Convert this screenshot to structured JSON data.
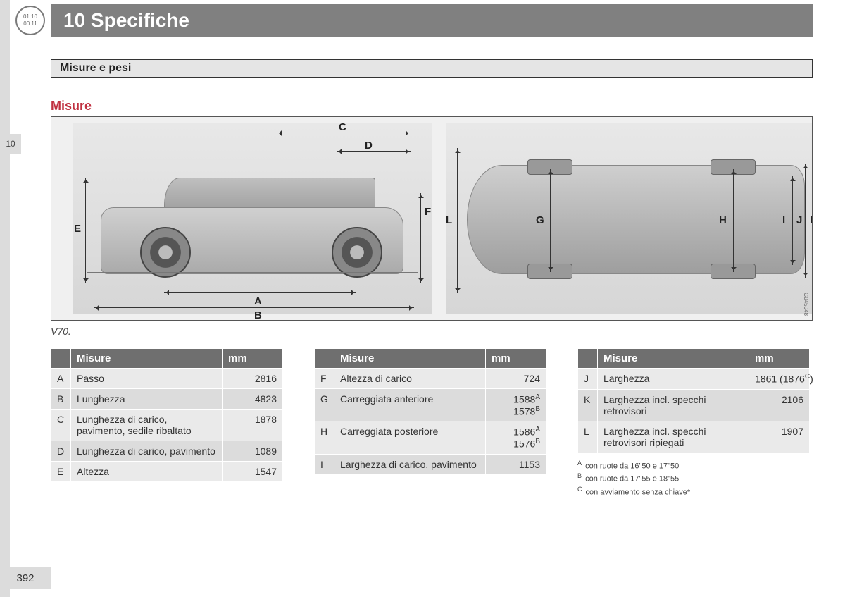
{
  "chapter": {
    "icon_text": "01 10\n00 11",
    "number_title": "10 Specifiche"
  },
  "section_tab": "10",
  "page_number": "392",
  "section_bar": "Misure e pesi",
  "subheading": {
    "text": "Misure",
    "color": "#c03040"
  },
  "diagram": {
    "caption": "V70.",
    "image_code": "G045048",
    "labels": {
      "A": "A",
      "B": "B",
      "C": "C",
      "D": "D",
      "E": "E",
      "F": "F",
      "G": "G",
      "H": "H",
      "I": "I",
      "J": "J",
      "K": "K",
      "L": "L"
    }
  },
  "tables": {
    "headers": {
      "misure": "Misure",
      "mm": "mm"
    },
    "col1": [
      {
        "k": "A",
        "label": "Passo",
        "val": "2816"
      },
      {
        "k": "B",
        "label": "Lunghezza",
        "val": "4823"
      },
      {
        "k": "C",
        "label": "Lunghezza di carico, pavimento, sedile ribaltato",
        "val": "1878"
      },
      {
        "k": "D",
        "label": "Lunghezza di carico, pavimento",
        "val": "1089"
      },
      {
        "k": "E",
        "label": "Altezza",
        "val": "1547"
      }
    ],
    "col2": [
      {
        "k": "F",
        "label": "Altezza di carico",
        "val": "724"
      },
      {
        "k": "G",
        "label": "Carreggiata anteriore",
        "val": "1588<sup>A</sup><br>1578<sup>B</sup>"
      },
      {
        "k": "H",
        "label": "Carreggiata posteriore",
        "val": "1586<sup>A</sup><br>1576<sup>B</sup>"
      },
      {
        "k": "I",
        "label": "Larghezza di carico, pavimento",
        "val": "1153"
      }
    ],
    "col3": [
      {
        "k": "J",
        "label": "Larghezza",
        "val": "1861 (1876<sup>C</sup>)"
      },
      {
        "k": "K",
        "label": "Larghezza incl. specchi retrovisori",
        "val": "2106"
      },
      {
        "k": "L",
        "label": "Larghezza incl. specchi retrovisori ripiegati",
        "val": "1907"
      }
    ],
    "footnotes": [
      {
        "mark": "A",
        "text": "con ruote da 16\"50 e 17\"50"
      },
      {
        "mark": "B",
        "text": "con ruote da 17\"55 e 18\"55"
      },
      {
        "mark": "C",
        "text": "con avviamento senza chiave*"
      }
    ]
  },
  "colors": {
    "header_bg": "#808080",
    "table_header_bg": "#6f6f6f",
    "row_odd": "#eaeaea",
    "row_even": "#dcdcdc"
  }
}
